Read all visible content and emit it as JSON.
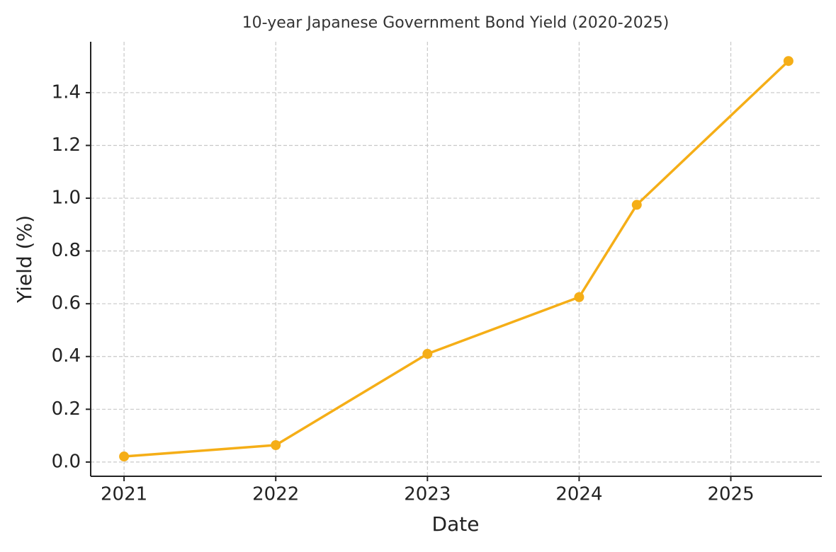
{
  "chart_data": {
    "type": "line",
    "title": "10-year Japanese Government Bond Yield (2020-2025)",
    "x_label": "Date",
    "y_label": "Yield (%)",
    "x": [
      2021,
      2022,
      2023,
      2024,
      2024.38,
      2025.38
    ],
    "values": [
      0.021,
      0.064,
      0.41,
      0.625,
      0.975,
      1.52
    ],
    "color": "#f5ae17",
    "xlim": [
      2020.78,
      2025.6
    ],
    "xticks": [
      2021,
      2022,
      2023,
      2024,
      2025
    ],
    "ylim": [
      -0.054,
      1.593
    ],
    "yticks": [
      {
        "value": 0,
        "label": "0.0"
      },
      0.2,
      0.4,
      0.6,
      0.8,
      {
        "value": 1,
        "label": "1.0"
      },
      1.2,
      1.4
    ],
    "grid": true,
    "markers": true
  }
}
